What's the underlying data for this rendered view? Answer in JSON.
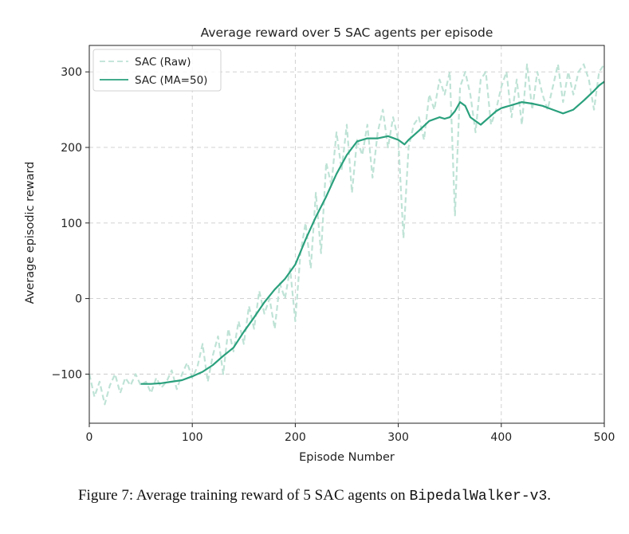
{
  "chart_data": {
    "type": "line",
    "title": "Average reward over 5 SAC agents per episode",
    "xlabel": "Episode Number",
    "ylabel": "Average episodic reward",
    "xlim": [
      0,
      500
    ],
    "ylim": [
      -165,
      335
    ],
    "xticks": [
      0,
      100,
      200,
      300,
      400,
      500
    ],
    "yticks": [
      -100,
      0,
      100,
      200,
      300
    ],
    "grid": true,
    "legend_position": "top-left",
    "series": [
      {
        "name": "SAC (Raw)",
        "style": "dashed",
        "color": "#bfe3d6",
        "x": [
          0,
          5,
          10,
          15,
          20,
          25,
          30,
          35,
          40,
          45,
          50,
          55,
          60,
          65,
          70,
          75,
          80,
          85,
          90,
          95,
          100,
          105,
          110,
          115,
          120,
          125,
          130,
          135,
          140,
          145,
          150,
          155,
          160,
          165,
          170,
          175,
          180,
          185,
          190,
          195,
          200,
          205,
          210,
          215,
          220,
          225,
          230,
          235,
          240,
          245,
          250,
          255,
          260,
          265,
          270,
          275,
          280,
          285,
          290,
          295,
          300,
          305,
          310,
          315,
          320,
          325,
          330,
          335,
          340,
          345,
          350,
          355,
          360,
          365,
          370,
          375,
          380,
          385,
          390,
          395,
          400,
          405,
          410,
          415,
          420,
          425,
          430,
          435,
          440,
          445,
          450,
          455,
          460,
          465,
          470,
          475,
          480,
          485,
          490,
          495,
          500
        ],
        "values": [
          -100,
          -130,
          -110,
          -140,
          -115,
          -100,
          -125,
          -105,
          -115,
          -100,
          -115,
          -110,
          -125,
          -105,
          -118,
          -110,
          -95,
          -120,
          -100,
          -85,
          -105,
          -90,
          -60,
          -110,
          -75,
          -50,
          -100,
          -40,
          -70,
          -30,
          -60,
          -10,
          -40,
          10,
          -20,
          0,
          -40,
          20,
          0,
          40,
          -30,
          60,
          100,
          40,
          140,
          60,
          180,
          150,
          220,
          170,
          230,
          140,
          210,
          190,
          230,
          160,
          220,
          250,
          200,
          240,
          210,
          80,
          200,
          230,
          240,
          210,
          270,
          250,
          290,
          270,
          300,
          110,
          280,
          300,
          270,
          220,
          290,
          300,
          230,
          250,
          280,
          300,
          240,
          290,
          230,
          310,
          250,
          300,
          270,
          250,
          280,
          310,
          260,
          300,
          270,
          300,
          310,
          290,
          250,
          300,
          310
        ]
      },
      {
        "name": "SAC (MA=50)",
        "style": "solid",
        "color": "#2aa07c",
        "x": [
          50,
          60,
          70,
          80,
          90,
          100,
          110,
          120,
          130,
          140,
          150,
          160,
          170,
          180,
          190,
          200,
          210,
          220,
          230,
          240,
          250,
          260,
          270,
          280,
          290,
          300,
          303,
          306,
          310,
          320,
          330,
          340,
          345,
          350,
          355,
          360,
          365,
          370,
          380,
          390,
          395,
          400,
          410,
          420,
          430,
          440,
          450,
          460,
          470,
          480,
          490,
          495,
          500
        ],
        "values": [
          -113,
          -113,
          -112,
          -110,
          -108,
          -103,
          -97,
          -88,
          -76,
          -65,
          -44,
          -25,
          -5,
          12,
          26,
          45,
          78,
          108,
          135,
          165,
          190,
          208,
          212,
          212,
          215,
          210,
          207,
          204,
          210,
          222,
          235,
          240,
          238,
          240,
          248,
          260,
          255,
          240,
          230,
          242,
          248,
          252,
          256,
          260,
          258,
          255,
          250,
          245,
          250,
          262,
          275,
          282,
          287
        ]
      }
    ]
  },
  "caption": {
    "text": "Figure 7: Average training reward of 5 SAC agents on ",
    "code": "BipedalWalker-v3",
    "end": "."
  }
}
